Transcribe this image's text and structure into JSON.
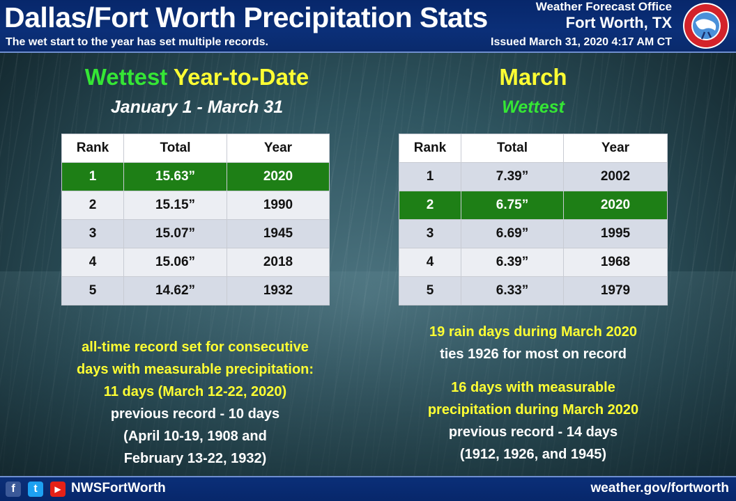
{
  "header": {
    "title": "Dallas/Fort Worth Precipitation Stats",
    "subtitle": "The wet start to the year has set multiple records.",
    "office_name": "Weather Forecast Office",
    "office_location": "Fort Worth, TX",
    "issued": "Issued March 31, 2020 4:17 AM CT",
    "logo_icon": "nws-logo-icon"
  },
  "ytd": {
    "heading_green": "Wettest",
    "heading_yellow": "Year-to-Date",
    "date_range": "January 1 - March 31",
    "columns": [
      "Rank",
      "Total",
      "Year"
    ],
    "rows": [
      {
        "rank": "1",
        "total": "15.63”",
        "year": "2020"
      },
      {
        "rank": "2",
        "total": "15.15”",
        "year": "1990"
      },
      {
        "rank": "3",
        "total": "15.07”",
        "year": "1945"
      },
      {
        "rank": "4",
        "total": "15.06”",
        "year": "2018"
      },
      {
        "rank": "5",
        "total": "14.62”",
        "year": "1932"
      }
    ],
    "highlight_row": 0,
    "note": {
      "line1": "all-time record set for consecutive",
      "line2": "days with measurable precipitation:",
      "line3": "11 days (March 12-22, 2020)",
      "line4": "previous record - 10 days",
      "line5": "(April 10-19, 1908 and",
      "line6": "February 13-22, 1932)"
    }
  },
  "march": {
    "heading": "March",
    "subheading": "Wettest",
    "columns": [
      "Rank",
      "Total",
      "Year"
    ],
    "rows": [
      {
        "rank": "1",
        "total": "7.39”",
        "year": "2002"
      },
      {
        "rank": "2",
        "total": "6.75”",
        "year": "2020"
      },
      {
        "rank": "3",
        "total": "6.69”",
        "year": "1995"
      },
      {
        "rank": "4",
        "total": "6.39”",
        "year": "1968"
      },
      {
        "rank": "5",
        "total": "6.33”",
        "year": "1979"
      }
    ],
    "highlight_row": 1,
    "note1": {
      "line1": "19 rain days during March 2020",
      "line2": "ties 1926 for most on record"
    },
    "note2": {
      "line1": "16 days with measurable",
      "line2": "precipitation during March 2020",
      "line3": "previous record - 14 days",
      "line4": "(1912, 1926, and 1945)"
    }
  },
  "footer": {
    "facebook_icon": "f",
    "twitter_icon": "t",
    "youtube_icon": "▶",
    "handle": "NWSFortWorth",
    "website": "weather.gov/fortworth"
  },
  "colors": {
    "header_bg": "#0b2f78",
    "highlight_green": "#1e7f16",
    "heading_green": "#35e635",
    "heading_yellow": "#ffff33"
  }
}
